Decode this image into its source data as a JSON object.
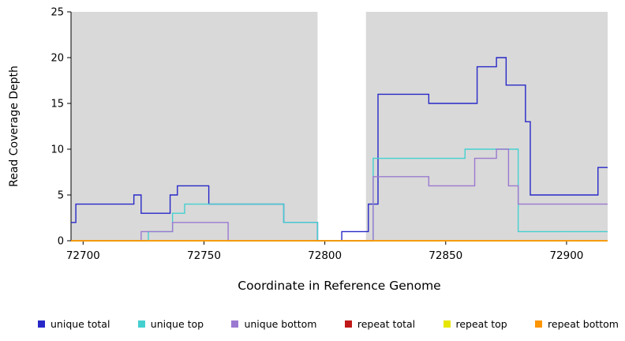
{
  "chart_data": {
    "type": "line",
    "step": true,
    "title": "",
    "xlabel": "Coordinate in Reference Genome",
    "ylabel": "Read Coverage Depth",
    "xlim": [
      72695,
      72917
    ],
    "ylim": [
      0,
      25
    ],
    "xticks": [
      72700,
      72750,
      72800,
      72850,
      72900
    ],
    "yticks": [
      0,
      5,
      10,
      15,
      20,
      25
    ],
    "plot_bg": "#d9d9d9",
    "gap_band": {
      "x0": 72797,
      "x1": 72817,
      "color": "#ffffff"
    },
    "legend_position": "bottom",
    "grid": false,
    "series": [
      {
        "name": "unique total",
        "color": "#2828c8",
        "points": [
          [
            72695,
            2
          ],
          [
            72697,
            4
          ],
          [
            72721,
            5
          ],
          [
            72724,
            3
          ],
          [
            72736,
            5
          ],
          [
            72739,
            6
          ],
          [
            72752,
            4
          ],
          [
            72783,
            2
          ],
          [
            72797,
            0
          ],
          [
            72807,
            1
          ],
          [
            72818,
            4
          ],
          [
            72822,
            16
          ],
          [
            72843,
            15
          ],
          [
            72863,
            19
          ],
          [
            72871,
            20
          ],
          [
            72875,
            17
          ],
          [
            72883,
            13
          ],
          [
            72885,
            5
          ],
          [
            72913,
            8
          ]
        ]
      },
      {
        "name": "unique top",
        "color": "#45d0d0",
        "points": [
          [
            72695,
            0
          ],
          [
            72727,
            1
          ],
          [
            72737,
            3
          ],
          [
            72742,
            4
          ],
          [
            72783,
            2
          ],
          [
            72797,
            0
          ],
          [
            72820,
            9
          ],
          [
            72858,
            10
          ],
          [
            72880,
            1
          ]
        ]
      },
      {
        "name": "unique bottom",
        "color": "#9b79d0",
        "points": [
          [
            72695,
            0
          ],
          [
            72724,
            1
          ],
          [
            72737,
            2
          ],
          [
            72760,
            0
          ],
          [
            72820,
            7
          ],
          [
            72843,
            6
          ],
          [
            72862,
            9
          ],
          [
            72871,
            10
          ],
          [
            72876,
            6
          ],
          [
            72880,
            4
          ]
        ]
      },
      {
        "name": "repeat total",
        "color": "#c01818",
        "points": [
          [
            72695,
            0
          ]
        ]
      },
      {
        "name": "repeat top",
        "color": "#e6e600",
        "points": [
          [
            72695,
            0
          ]
        ]
      },
      {
        "name": "repeat bottom",
        "color": "#ff9500",
        "points": [
          [
            72695,
            0
          ]
        ]
      }
    ]
  }
}
